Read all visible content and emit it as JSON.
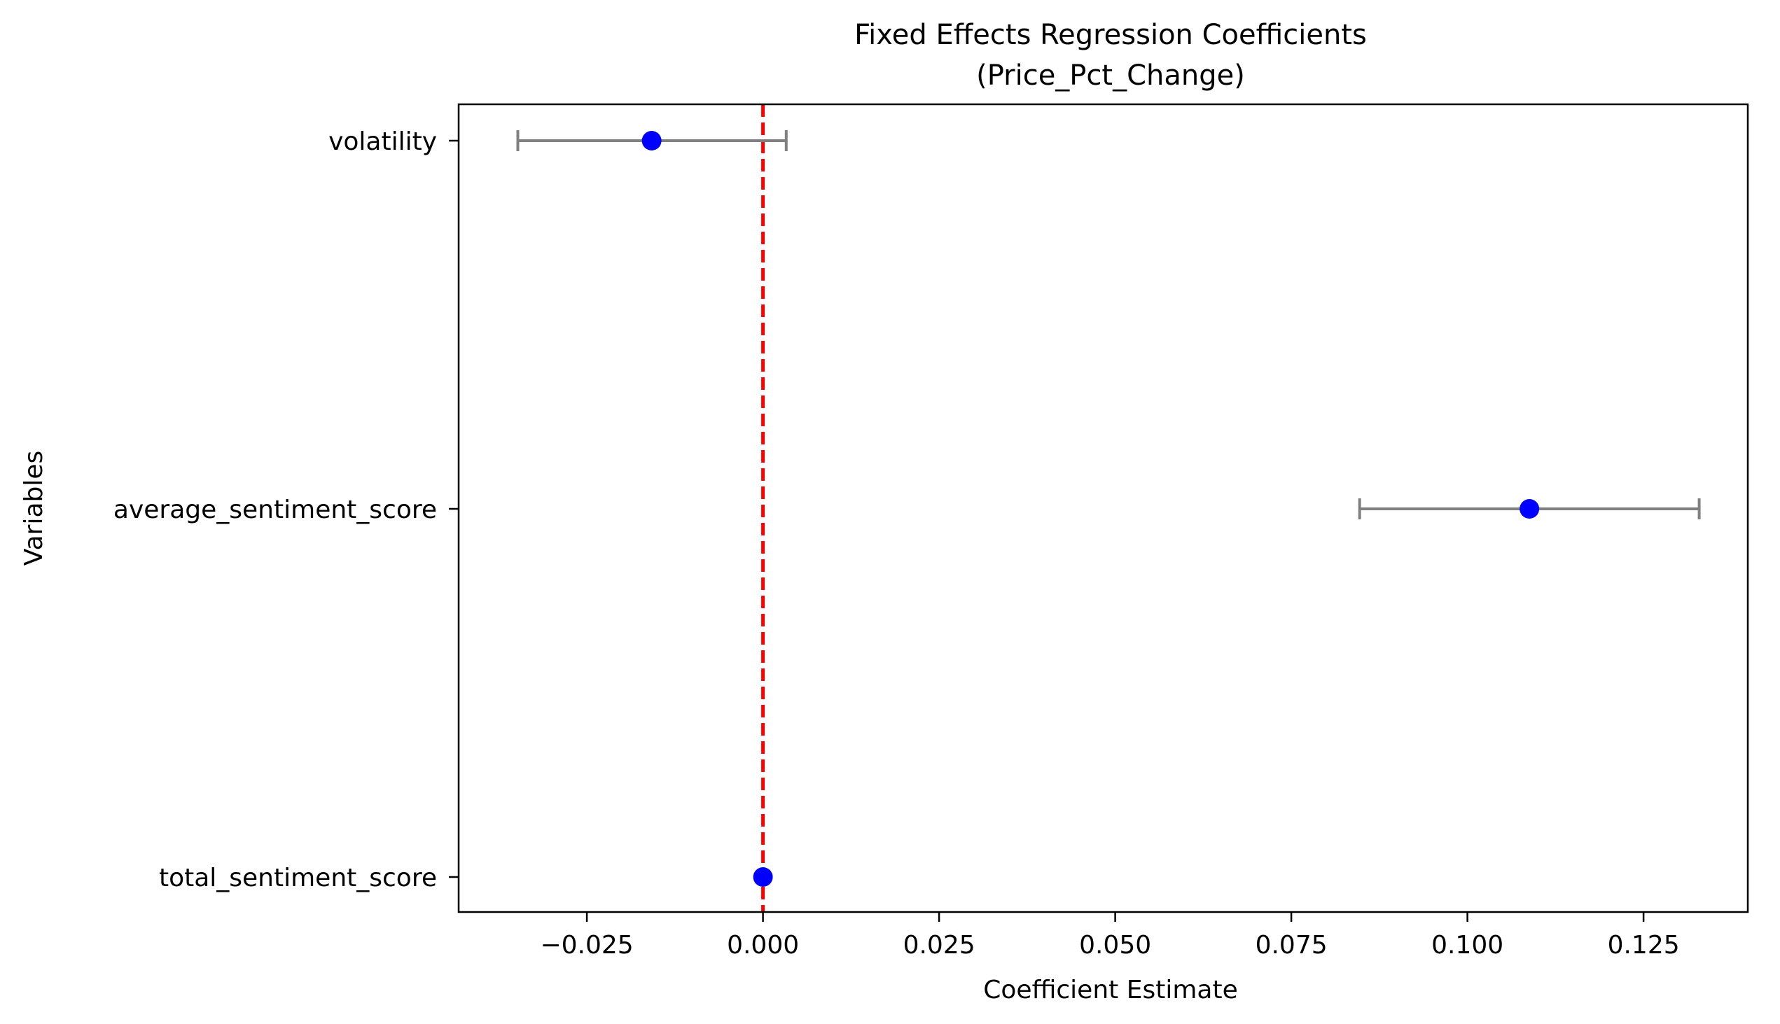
{
  "chart_data": {
    "type": "scatter",
    "title": "Fixed Effects Regression Coefficients",
    "subtitle": "(Price_Pct_Change)",
    "xlabel": "Coefficient Estimate",
    "ylabel": "Variables",
    "xlim": [
      -0.0432,
      0.1398
    ],
    "xticks": [
      -0.025,
      0.0,
      0.025,
      0.05,
      0.075,
      0.1,
      0.125
    ],
    "xtick_labels": [
      "−0.025",
      "0.000",
      "0.025",
      "0.050",
      "0.075",
      "0.100",
      "0.125"
    ],
    "categories": [
      "volatility",
      "average_sentiment_score",
      "total_sentiment_score"
    ],
    "values": [
      -0.0158,
      0.1088,
      0.0
    ],
    "ci_lower": [
      -0.0348,
      0.0847,
      0.0
    ],
    "ci_upper": [
      0.0033,
      0.1329,
      0.0
    ],
    "reference_line": {
      "x": 0,
      "style": "dashed"
    },
    "grid": false,
    "colors": {
      "point": "#0000ff",
      "errorbar": "#808080",
      "reference_line": "#ff0000",
      "axes": "#000000"
    }
  }
}
